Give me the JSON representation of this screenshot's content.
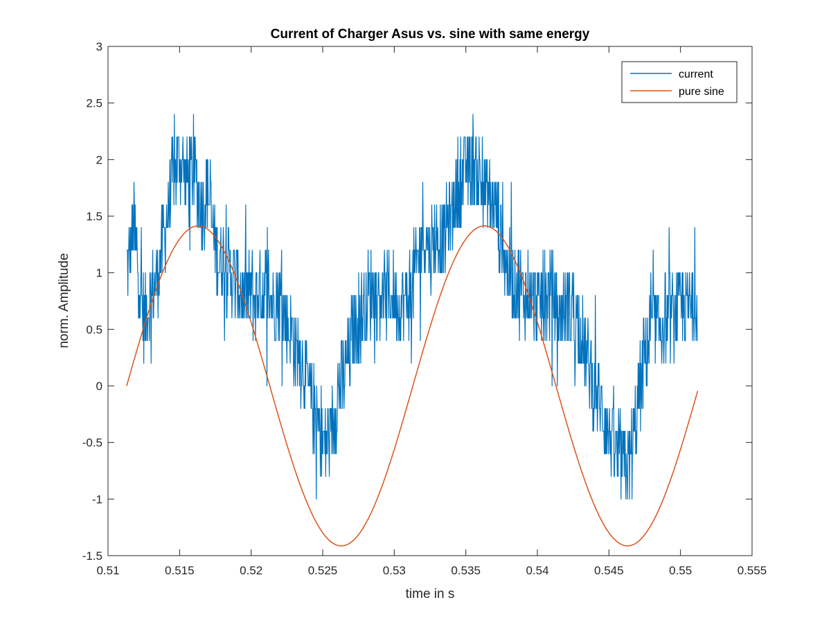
{
  "chart_data": {
    "type": "line",
    "title": "Current of Charger Asus vs. sine with same energy",
    "xlabel": "time in s",
    "ylabel": "norm. Amplitude",
    "xlim": [
      0.51,
      0.555
    ],
    "ylim": [
      -1.5,
      3
    ],
    "x_ticks": [
      "0.51",
      "0.515",
      "0.52",
      "0.525",
      "0.53",
      "0.535",
      "0.54",
      "0.545",
      "0.55",
      "0.555"
    ],
    "y_ticks": [
      "-1.5",
      "-1",
      "-0.5",
      "0",
      "0.5",
      "1",
      "1.5",
      "2",
      "2.5",
      "3"
    ],
    "grid": false,
    "legend_position": "top-right",
    "series": [
      {
        "name": "current",
        "color": "#0072BD",
        "style": "noisy line, quantized in steps of about 0.2",
        "x": [
          0.5113,
          0.5118,
          0.5125,
          0.513,
          0.5135,
          0.514,
          0.5145,
          0.515,
          0.5155,
          0.516,
          0.5165,
          0.517,
          0.5175,
          0.518,
          0.5185,
          0.519,
          0.5195,
          0.52,
          0.5205,
          0.521,
          0.5215,
          0.522,
          0.5225,
          0.523,
          0.5235,
          0.524,
          0.5245,
          0.525,
          0.5255,
          0.526,
          0.5265,
          0.527,
          0.5275,
          0.528,
          0.5285,
          0.529,
          0.5295,
          0.53,
          0.5305,
          0.531,
          0.5315,
          0.532,
          0.5325,
          0.533,
          0.5335,
          0.534,
          0.5345,
          0.535,
          0.5355,
          0.536,
          0.5365,
          0.537,
          0.5375,
          0.538,
          0.5385,
          0.539,
          0.5395,
          0.54,
          0.5405,
          0.541,
          0.5415,
          0.542,
          0.5425,
          0.543,
          0.5435,
          0.544,
          0.5445,
          0.545,
          0.5455,
          0.546,
          0.5465,
          0.547,
          0.5475,
          0.548,
          0.5485,
          0.549,
          0.5495,
          0.55,
          0.5505,
          0.5512
        ],
        "values": [
          1.0,
          1.4,
          0.6,
          0.8,
          1.0,
          1.4,
          1.8,
          2.0,
          1.8,
          1.9,
          1.6,
          1.7,
          1.2,
          1.1,
          1.0,
          0.9,
          0.8,
          0.8,
          0.8,
          0.9,
          0.8,
          0.8,
          0.6,
          0.4,
          0.2,
          0.0,
          -0.3,
          -0.5,
          -0.5,
          -0.1,
          0.1,
          0.4,
          0.6,
          0.7,
          0.9,
          0.8,
          0.8,
          0.8,
          0.7,
          0.8,
          1.0,
          1.4,
          1.2,
          1.3,
          1.3,
          1.5,
          1.8,
          1.9,
          2.0,
          1.8,
          1.7,
          1.6,
          1.3,
          1.0,
          0.9,
          0.8,
          0.8,
          0.7,
          0.8,
          0.8,
          0.6,
          0.7,
          0.7,
          0.5,
          0.2,
          0.0,
          -0.2,
          -0.4,
          -0.6,
          -0.7,
          -0.7,
          -0.2,
          0.3,
          0.5,
          0.5,
          0.6,
          0.6,
          0.7,
          0.7,
          0.7
        ]
      },
      {
        "name": "pure sine",
        "color": "#D95319",
        "amplitude": 1.414,
        "period_s": 0.02,
        "x": [
          0.5113,
          0.5138,
          0.5163,
          0.5188,
          0.5213,
          0.5238,
          0.5263,
          0.5288,
          0.5313,
          0.5338,
          0.5363,
          0.5388,
          0.5413,
          0.5438,
          0.5463,
          0.5488,
          0.5512
        ],
        "values": [
          0.0,
          1.0,
          1.414,
          1.0,
          0.0,
          -1.0,
          -1.414,
          -1.0,
          0.0,
          1.0,
          1.414,
          1.0,
          0.0,
          -1.0,
          -1.414,
          -1.0,
          0.0
        ]
      }
    ]
  }
}
